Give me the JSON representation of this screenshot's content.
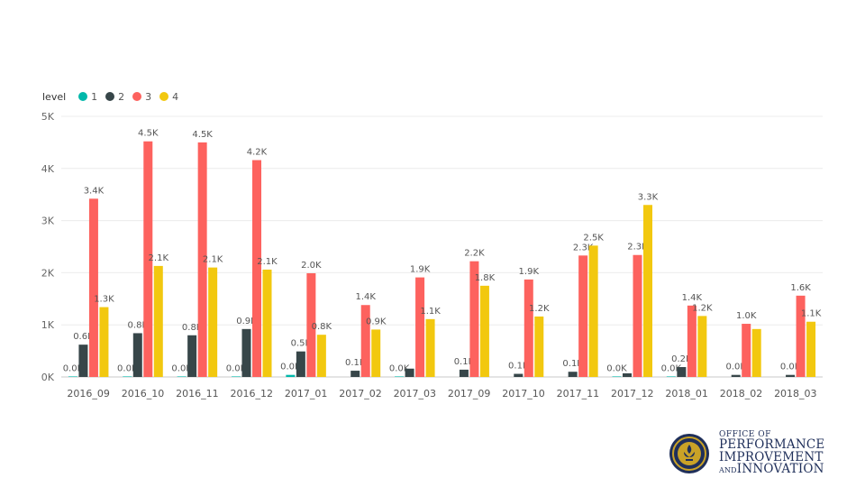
{
  "chart_data": {
    "type": "bar",
    "legend_title": "level",
    "legend_position": "top-left",
    "grid": true,
    "ylim": [
      0,
      5000
    ],
    "y_ticks": [
      "0K",
      "1K",
      "2K",
      "3K",
      "4K",
      "5K"
    ],
    "y_tick_values": [
      0,
      1000,
      2000,
      3000,
      4000,
      5000
    ],
    "categories": [
      "2016_09",
      "2016_10",
      "2016_11",
      "2016_12",
      "2017_01",
      "2017_02",
      "2017_03",
      "2017_09",
      "2017_10",
      "2017_11",
      "2017_12",
      "2018_01",
      "2018_02",
      "2018_03"
    ],
    "series": [
      {
        "name": "1",
        "color": "#01B8AA",
        "values": [
          10,
          10,
          10,
          10,
          40,
          null,
          10,
          null,
          null,
          null,
          10,
          10,
          null,
          null
        ],
        "labels": [
          "0.0K",
          "0.0K",
          "0.0K",
          "0.0K",
          "0.0K",
          "",
          "0.0K",
          "",
          "",
          "",
          "0.0K",
          "0.0K",
          "",
          ""
        ]
      },
      {
        "name": "2",
        "color": "#374649",
        "values": [
          620,
          840,
          800,
          920,
          490,
          120,
          160,
          140,
          60,
          100,
          70,
          190,
          40,
          40
        ],
        "labels": [
          "0.6K",
          "0.8K",
          "0.8K",
          "0.9K",
          "0.5K",
          "0.1K",
          "",
          "0.1K",
          "0.1K",
          "0.1K",
          "",
          "0.2K",
          "0.0K",
          "0.0K"
        ]
      },
      {
        "name": "3",
        "color": "#FD625E",
        "values": [
          3420,
          4520,
          4500,
          4160,
          1990,
          1380,
          1910,
          2220,
          1870,
          2330,
          2340,
          1370,
          1020,
          1560
        ],
        "labels": [
          "3.4K",
          "4.5K",
          "4.5K",
          "4.2K",
          "2.0K",
          "1.4K",
          "1.9K",
          "2.2K",
          "1.9K",
          "2.3K",
          "2.3K",
          "1.4K",
          "1.0K",
          "1.6K"
        ]
      },
      {
        "name": "4",
        "color": "#F2C80F",
        "values": [
          1340,
          2130,
          2100,
          2060,
          810,
          910,
          1110,
          1750,
          1160,
          2520,
          3300,
          1170,
          920,
          1060
        ],
        "labels": [
          "1.3K",
          "2.1K",
          "2.1K",
          "2.1K",
          "0.8K",
          "0.9K",
          "1.1K",
          "1.8K",
          "1.2K",
          "2.5K",
          "3.3K",
          "1.2K",
          "",
          "1.1K"
        ]
      }
    ]
  },
  "logo": {
    "line1": "OFFICE OF",
    "line2": "PERFORMANCE",
    "line3": "IMPROVEMENT",
    "line4_and": "AND",
    "line4_rest": "INNOVATION",
    "seal_text": "LOUISVILLE"
  }
}
